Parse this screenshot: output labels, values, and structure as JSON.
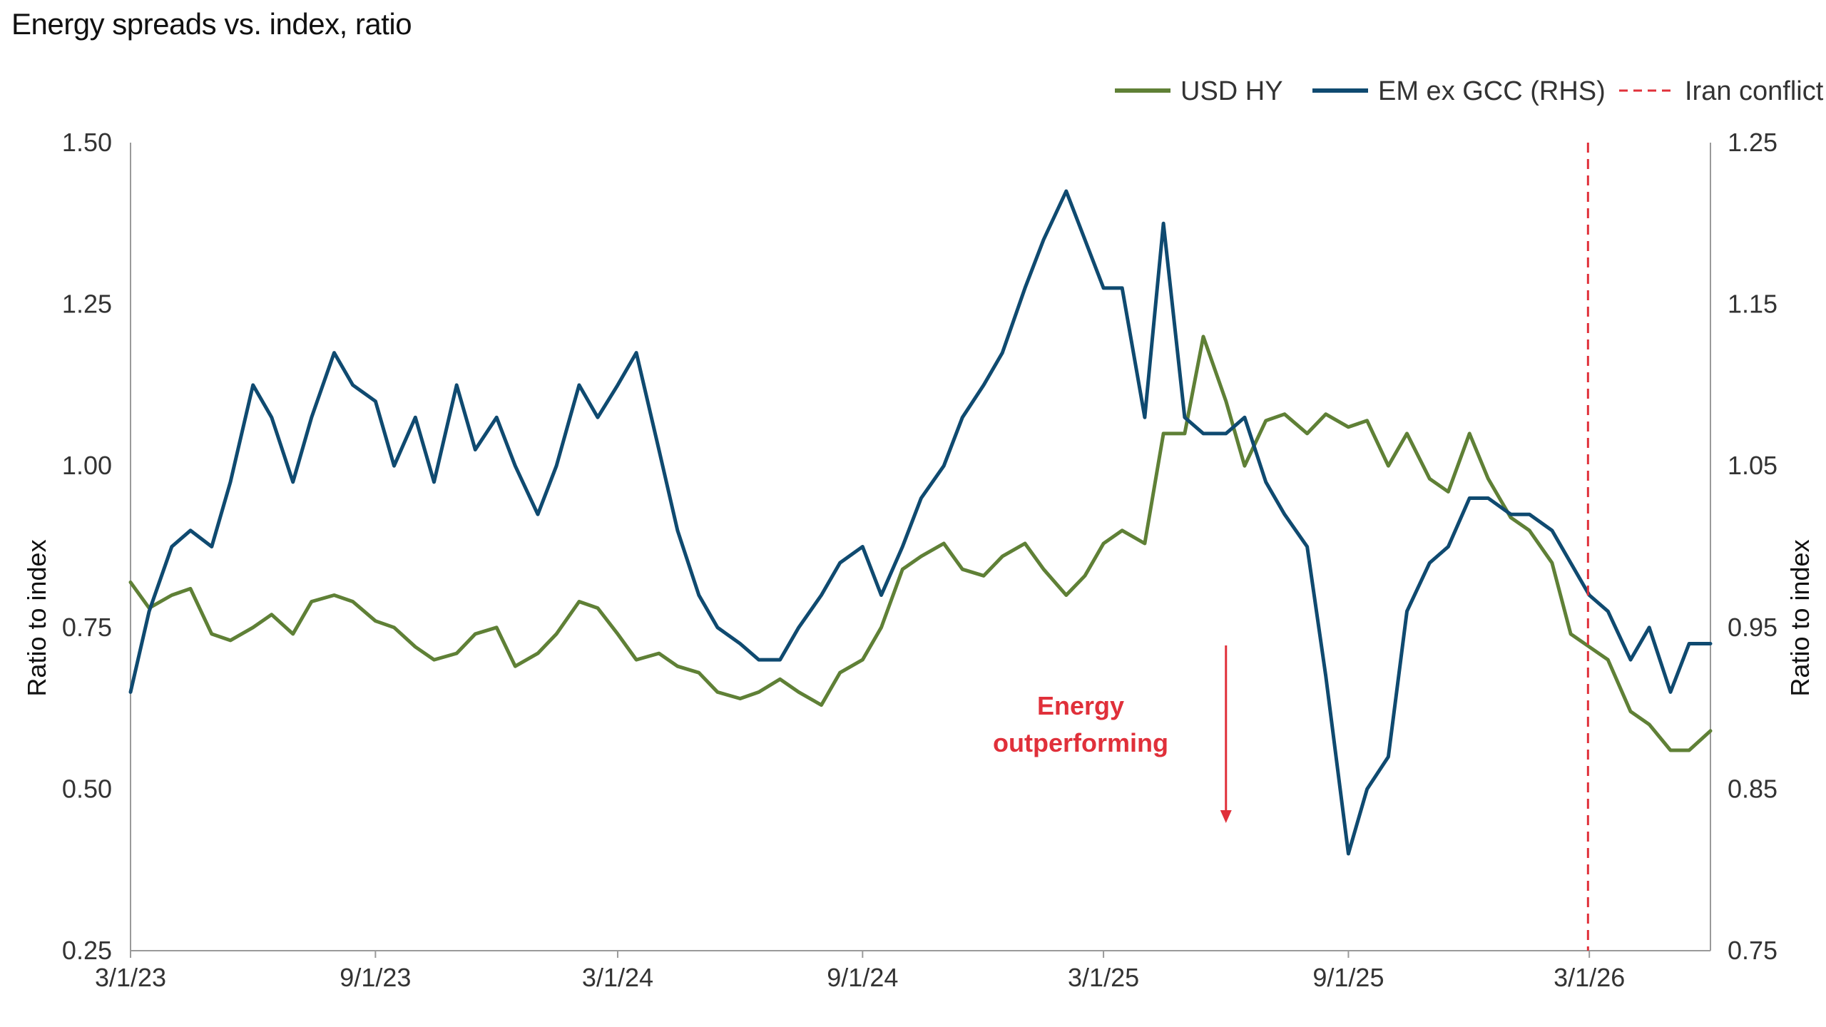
{
  "title": "Energy spreads vs. index, ratio",
  "colors": {
    "usd_hy": "#5f8036",
    "em_ex_gcc": "#0f4a70",
    "iran_conflict": "#e0303a",
    "axis": "#9a9a9a"
  },
  "chart_data": {
    "type": "line",
    "title": "Energy spreads vs. index, ratio",
    "xlabel": "",
    "ylabel_left": "Ratio to index",
    "ylabel_right": "Ratio to index",
    "x_ticks": [
      "3/1/23",
      "9/1/23",
      "3/1/24",
      "9/1/24",
      "3/1/25",
      "9/1/25",
      "3/1/26"
    ],
    "x_range": [
      "3/1/23",
      "5/31/26"
    ],
    "ylim_left": [
      0.25,
      1.5
    ],
    "ylim_right": [
      0.75,
      1.25
    ],
    "y_ticks_left": [
      "0.25",
      "0.50",
      "0.75",
      "1.00",
      "1.25",
      "1.50"
    ],
    "y_ticks_right": [
      "0.75",
      "0.85",
      "0.95",
      "1.05",
      "1.15",
      "1.25"
    ],
    "legend_position": "top-right",
    "grid": false,
    "series": [
      {
        "name": "USD HY",
        "axis": "left",
        "color": "#5f8036",
        "points": [
          [
            "2023-03-01",
            0.82
          ],
          [
            "2023-03-15",
            0.78
          ],
          [
            "2023-04-01",
            0.8
          ],
          [
            "2023-04-15",
            0.81
          ],
          [
            "2023-05-01",
            0.74
          ],
          [
            "2023-05-15",
            0.73
          ],
          [
            "2023-06-01",
            0.75
          ],
          [
            "2023-06-15",
            0.77
          ],
          [
            "2023-07-01",
            0.74
          ],
          [
            "2023-07-15",
            0.79
          ],
          [
            "2023-08-01",
            0.8
          ],
          [
            "2023-08-15",
            0.79
          ],
          [
            "2023-09-01",
            0.76
          ],
          [
            "2023-09-15",
            0.75
          ],
          [
            "2023-10-01",
            0.72
          ],
          [
            "2023-10-15",
            0.7
          ],
          [
            "2023-11-01",
            0.71
          ],
          [
            "2023-11-15",
            0.74
          ],
          [
            "2023-12-01",
            0.75
          ],
          [
            "2023-12-15",
            0.69
          ],
          [
            "2024-01-01",
            0.71
          ],
          [
            "2024-01-15",
            0.74
          ],
          [
            "2024-02-01",
            0.79
          ],
          [
            "2024-02-15",
            0.78
          ],
          [
            "2024-03-01",
            0.74
          ],
          [
            "2024-03-15",
            0.7
          ],
          [
            "2024-04-01",
            0.71
          ],
          [
            "2024-04-15",
            0.69
          ],
          [
            "2024-05-01",
            0.68
          ],
          [
            "2024-05-15",
            0.65
          ],
          [
            "2024-06-01",
            0.64
          ],
          [
            "2024-06-15",
            0.65
          ],
          [
            "2024-07-01",
            0.67
          ],
          [
            "2024-07-15",
            0.65
          ],
          [
            "2024-08-01",
            0.63
          ],
          [
            "2024-08-15",
            0.68
          ],
          [
            "2024-09-01",
            0.7
          ],
          [
            "2024-09-15",
            0.75
          ],
          [
            "2024-10-01",
            0.84
          ],
          [
            "2024-10-15",
            0.86
          ],
          [
            "2024-11-01",
            0.88
          ],
          [
            "2024-11-15",
            0.84
          ],
          [
            "2024-12-01",
            0.83
          ],
          [
            "2024-12-15",
            0.86
          ],
          [
            "2025-01-01",
            0.88
          ],
          [
            "2025-01-15",
            0.84
          ],
          [
            "2025-02-01",
            0.8
          ],
          [
            "2025-02-15",
            0.83
          ],
          [
            "2025-03-01",
            0.88
          ],
          [
            "2025-03-15",
            0.9
          ],
          [
            "2025-04-01",
            0.88
          ],
          [
            "2025-04-15",
            1.05
          ],
          [
            "2025-05-01",
            1.05
          ],
          [
            "2025-05-15",
            1.2
          ],
          [
            "2025-06-01",
            1.1
          ],
          [
            "2025-06-15",
            1.0
          ],
          [
            "2025-07-01",
            1.07
          ],
          [
            "2025-07-15",
            1.08
          ],
          [
            "2025-08-01",
            1.05
          ],
          [
            "2025-08-15",
            1.08
          ],
          [
            "2025-09-01",
            1.06
          ],
          [
            "2025-09-15",
            1.07
          ],
          [
            "2025-10-01",
            1.0
          ],
          [
            "2025-10-15",
            1.05
          ],
          [
            "2025-11-01",
            0.98
          ],
          [
            "2025-11-15",
            0.96
          ],
          [
            "2025-12-01",
            1.05
          ],
          [
            "2025-12-15",
            0.98
          ],
          [
            "2026-01-01",
            0.92
          ],
          [
            "2026-01-15",
            0.9
          ],
          [
            "2026-02-01",
            0.85
          ],
          [
            "2026-02-15",
            0.74
          ],
          [
            "2026-03-01",
            0.72
          ],
          [
            "2026-03-15",
            0.7
          ],
          [
            "2026-04-01",
            0.62
          ],
          [
            "2026-04-15",
            0.6
          ],
          [
            "2026-05-01",
            0.56
          ],
          [
            "2026-05-15",
            0.56
          ],
          [
            "2026-05-31",
            0.59
          ]
        ]
      },
      {
        "name": "EM ex GCC (RHS)",
        "axis": "right",
        "color": "#0f4a70",
        "points": [
          [
            "2023-03-01",
            0.91
          ],
          [
            "2023-03-15",
            0.96
          ],
          [
            "2023-04-01",
            1.0
          ],
          [
            "2023-04-15",
            1.01
          ],
          [
            "2023-05-01",
            1.0
          ],
          [
            "2023-05-15",
            1.04
          ],
          [
            "2023-06-01",
            1.1
          ],
          [
            "2023-06-15",
            1.08
          ],
          [
            "2023-07-01",
            1.04
          ],
          [
            "2023-07-15",
            1.08
          ],
          [
            "2023-08-01",
            1.12
          ],
          [
            "2023-08-15",
            1.1
          ],
          [
            "2023-09-01",
            1.09
          ],
          [
            "2023-09-15",
            1.05
          ],
          [
            "2023-10-01",
            1.08
          ],
          [
            "2023-10-15",
            1.04
          ],
          [
            "2023-11-01",
            1.1
          ],
          [
            "2023-11-15",
            1.06
          ],
          [
            "2023-12-01",
            1.08
          ],
          [
            "2023-12-15",
            1.05
          ],
          [
            "2024-01-01",
            1.02
          ],
          [
            "2024-01-15",
            1.05
          ],
          [
            "2024-02-01",
            1.1
          ],
          [
            "2024-02-15",
            1.08
          ],
          [
            "2024-03-01",
            1.1
          ],
          [
            "2024-03-15",
            1.12
          ],
          [
            "2024-04-01",
            1.06
          ],
          [
            "2024-04-15",
            1.01
          ],
          [
            "2024-05-01",
            0.97
          ],
          [
            "2024-05-15",
            0.95
          ],
          [
            "2024-06-01",
            0.94
          ],
          [
            "2024-06-15",
            0.93
          ],
          [
            "2024-07-01",
            0.93
          ],
          [
            "2024-07-15",
            0.95
          ],
          [
            "2024-08-01",
            0.97
          ],
          [
            "2024-08-15",
            0.99
          ],
          [
            "2024-09-01",
            1.0
          ],
          [
            "2024-09-15",
            0.97
          ],
          [
            "2024-10-01",
            1.0
          ],
          [
            "2024-10-15",
            1.03
          ],
          [
            "2024-11-01",
            1.05
          ],
          [
            "2024-11-15",
            1.08
          ],
          [
            "2024-12-01",
            1.1
          ],
          [
            "2024-12-15",
            1.12
          ],
          [
            "2025-01-01",
            1.16
          ],
          [
            "2025-01-15",
            1.19
          ],
          [
            "2025-02-01",
            1.22
          ],
          [
            "2025-02-15",
            1.19
          ],
          [
            "2025-03-01",
            1.16
          ],
          [
            "2025-03-15",
            1.16
          ],
          [
            "2025-04-01",
            1.08
          ],
          [
            "2025-04-15",
            1.2
          ],
          [
            "2025-05-01",
            1.08
          ],
          [
            "2025-05-15",
            1.07
          ],
          [
            "2025-06-01",
            1.07
          ],
          [
            "2025-06-15",
            1.08
          ],
          [
            "2025-07-01",
            1.04
          ],
          [
            "2025-07-15",
            1.02
          ],
          [
            "2025-08-01",
            1.0
          ],
          [
            "2025-08-15",
            0.92
          ],
          [
            "2025-09-01",
            0.81
          ],
          [
            "2025-09-15",
            0.85
          ],
          [
            "2025-10-01",
            0.87
          ],
          [
            "2025-10-15",
            0.96
          ],
          [
            "2025-11-01",
            0.99
          ],
          [
            "2025-11-15",
            1.0
          ],
          [
            "2025-12-01",
            1.03
          ],
          [
            "2025-12-15",
            1.03
          ],
          [
            "2026-01-01",
            1.02
          ],
          [
            "2026-01-15",
            1.02
          ],
          [
            "2026-02-01",
            1.01
          ],
          [
            "2026-02-15",
            0.99
          ],
          [
            "2026-03-01",
            0.97
          ],
          [
            "2026-03-15",
            0.96
          ],
          [
            "2026-04-01",
            0.93
          ],
          [
            "2026-04-15",
            0.95
          ],
          [
            "2026-05-01",
            0.91
          ],
          [
            "2026-05-15",
            0.94
          ],
          [
            "2026-05-31",
            0.94
          ]
        ]
      }
    ],
    "event_line": {
      "name": "Iran conflict",
      "date": "2026-02-28",
      "style": "dashed",
      "color": "#e0303a"
    },
    "annotation": {
      "text_lines": [
        "Energy",
        "outperforming"
      ],
      "color": "#e0303a",
      "arrow_direction": "down",
      "x_date": "2025-06-01"
    }
  }
}
